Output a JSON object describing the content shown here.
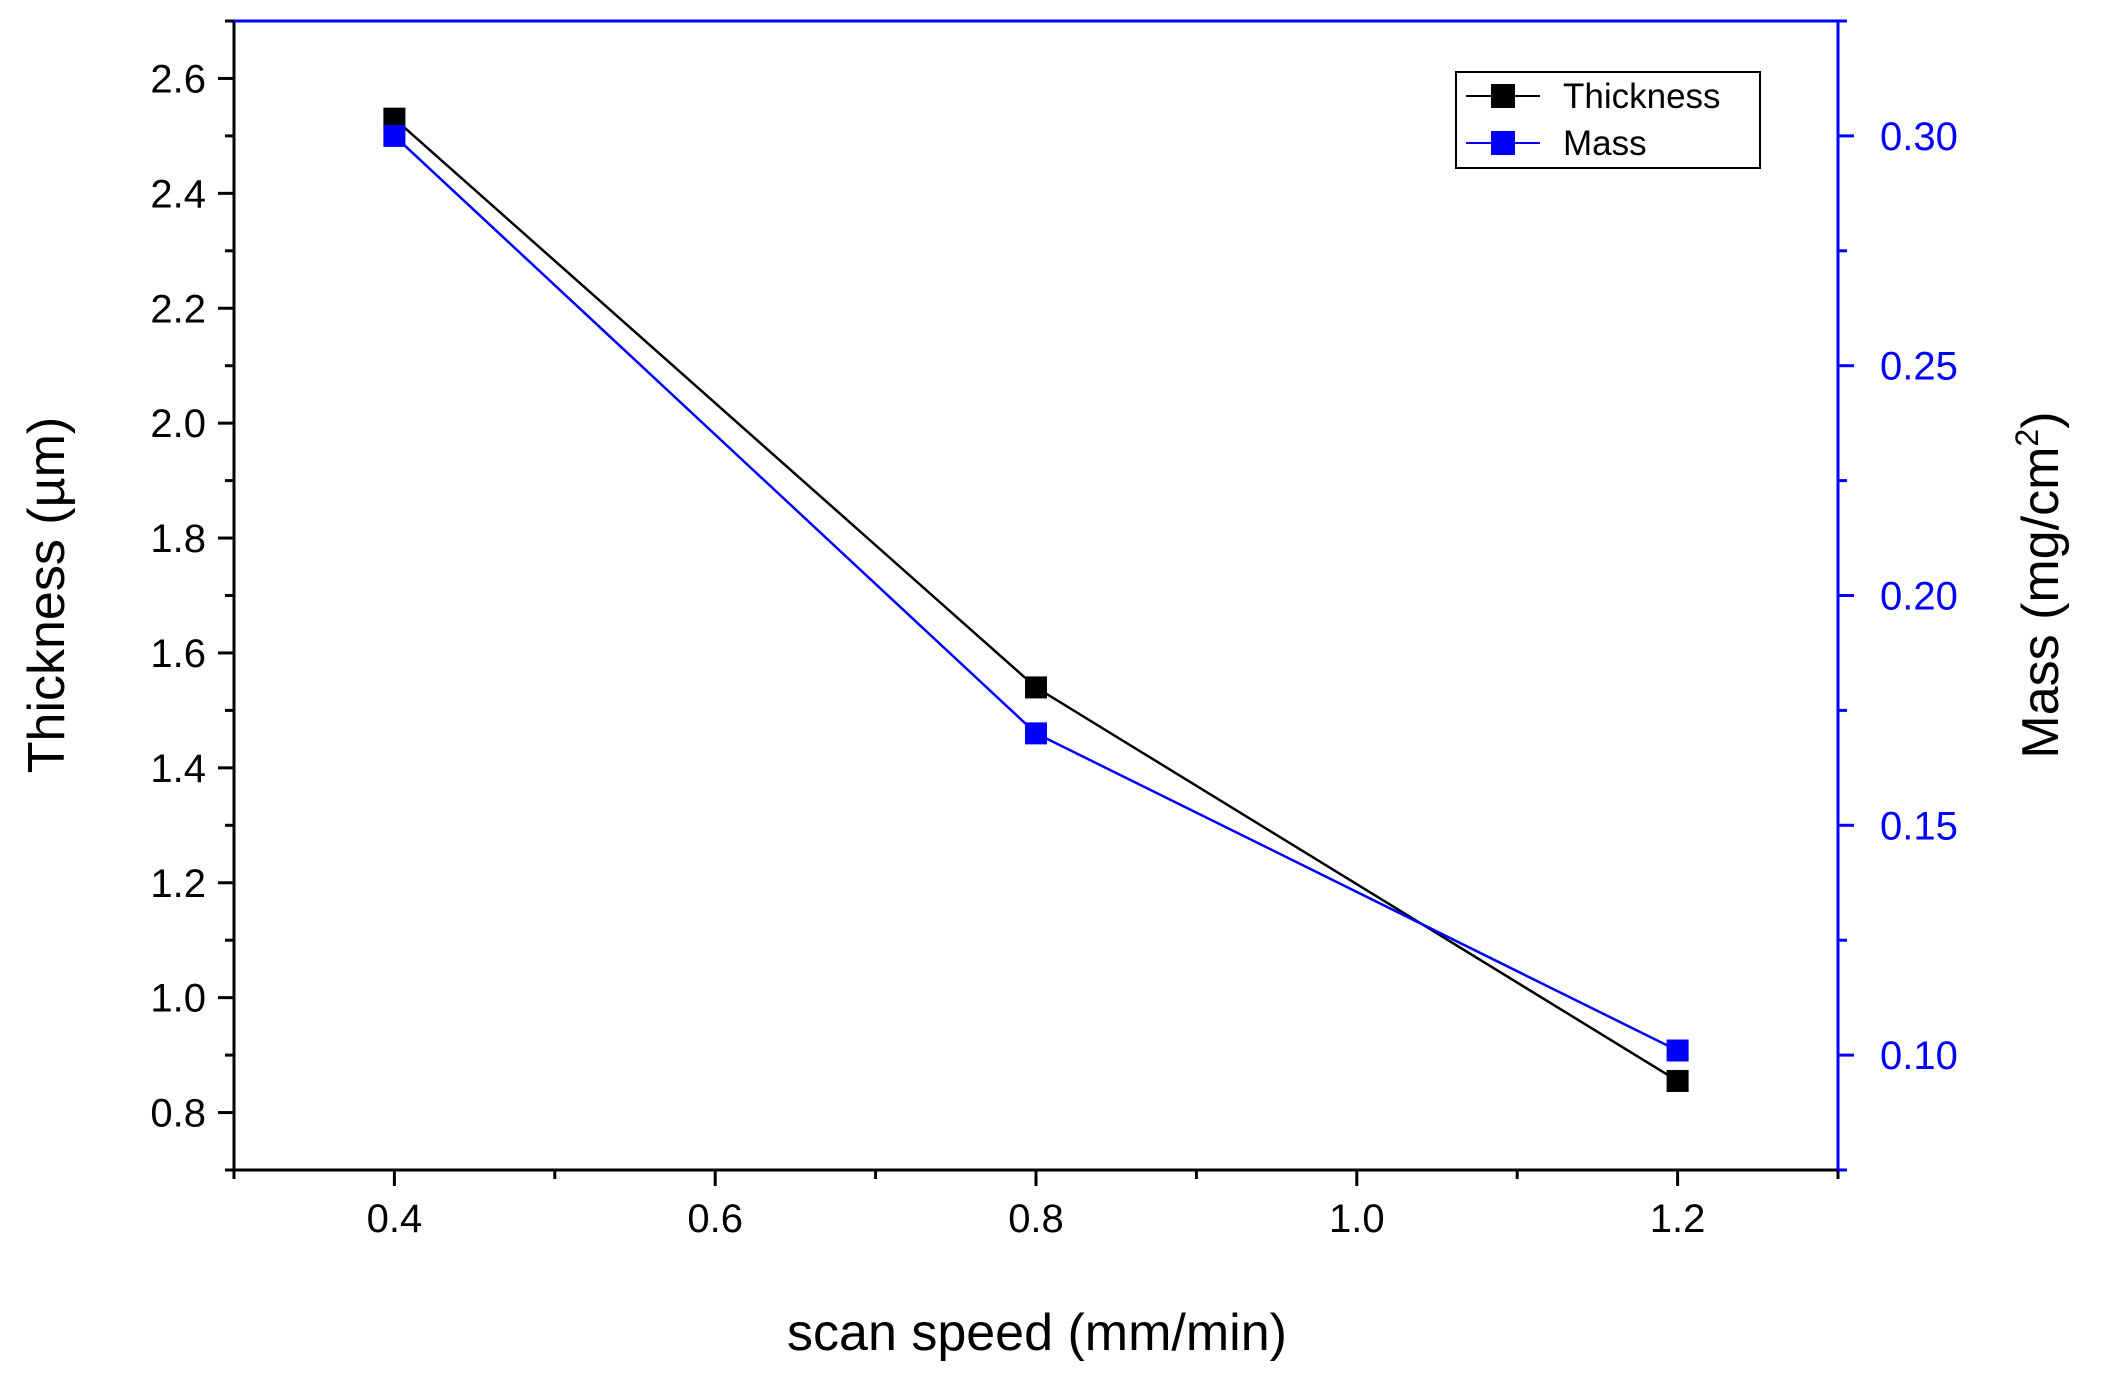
{
  "chart_data": {
    "type": "line",
    "title": "",
    "xlabel": "scan speed (mm/min)",
    "ylabel": "Thickness (µm)",
    "y2label": "Mass (mg/cm",
    "y2label_superscript": "2",
    "y2label_suffix": ")",
    "xlim": [
      0.3,
      1.3
    ],
    "ylim": [
      0.7,
      2.7
    ],
    "y2lim": [
      0.075,
      0.325
    ],
    "x_ticks": [
      "0.4",
      "0.6",
      "0.8",
      "1.0",
      "1.2"
    ],
    "y_ticks": [
      "0.8",
      "1.0",
      "1.2",
      "1.4",
      "1.6",
      "1.8",
      "2.0",
      "2.2",
      "2.4",
      "2.6"
    ],
    "y2_ticks": [
      "0.10",
      "0.15",
      "0.20",
      "0.25",
      "0.30"
    ],
    "x": [
      0.4,
      0.8,
      1.2
    ],
    "series": [
      {
        "name": "Thickness",
        "axis": "left",
        "color": "#000000",
        "values": [
          2.53,
          1.54,
          0.855
        ]
      },
      {
        "name": "Mass",
        "axis": "right",
        "color": "#0000ff",
        "values": [
          0.3,
          0.17,
          0.101
        ]
      }
    ],
    "legend_position": "top-right",
    "grid": false
  }
}
